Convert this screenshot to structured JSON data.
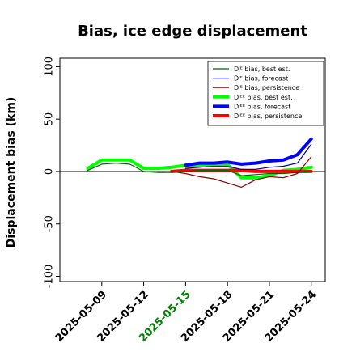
{
  "chart_data": {
    "type": "line",
    "title": "Bias, ice edge displacement",
    "xlabel": "",
    "ylabel": "Displacement bias (km)",
    "ylim": [
      -105,
      108
    ],
    "yticks": [
      -100,
      -50,
      0,
      50,
      100
    ],
    "xlim": [
      "2025-05-06",
      "2025-05-25"
    ],
    "xticks": [
      "2025-05-09",
      "2025-05-12",
      "2025-05-15",
      "2025-05-18",
      "2025-05-21",
      "2025-05-24"
    ],
    "highlighted_xtick": "2025-05-15",
    "highlight_color": "#008000",
    "legend_position": "top-right",
    "grid": false,
    "zero_line": true,
    "series": [
      {
        "name": "Dᴵᴱ bias, best est.",
        "color": "#006400",
        "width": 1.2,
        "x": [
          "2025-05-08",
          "2025-05-09",
          "2025-05-10",
          "2025-05-11",
          "2025-05-12",
          "2025-05-13",
          "2025-05-14",
          "2025-05-15",
          "2025-05-16",
          "2025-05-17",
          "2025-05-18",
          "2025-05-19",
          "2025-05-20",
          "2025-05-21",
          "2025-05-22",
          "2025-05-23",
          "2025-05-24"
        ],
        "y": [
          1,
          7,
          8,
          7,
          0,
          -1,
          -1,
          0,
          1,
          1,
          1,
          -4,
          -3,
          -2,
          -2,
          -1,
          0
        ]
      },
      {
        "name": "Dᴵᴱ bias, forecast",
        "color": "#00008b",
        "width": 1.2,
        "x": [
          "2025-05-15",
          "2025-05-16",
          "2025-05-17",
          "2025-05-18",
          "2025-05-19",
          "2025-05-20",
          "2025-05-21",
          "2025-05-22",
          "2025-05-23",
          "2025-05-24"
        ],
        "y": [
          3,
          4,
          5,
          5,
          2,
          2,
          4,
          5,
          8,
          26
        ]
      },
      {
        "name": "Dᴵᴱ bias, persistence",
        "color": "#8b0000",
        "width": 1.2,
        "x": [
          "2025-05-14",
          "2025-05-15",
          "2025-05-16",
          "2025-05-17",
          "2025-05-18",
          "2025-05-19",
          "2025-05-20",
          "2025-05-21",
          "2025-05-22",
          "2025-05-23",
          "2025-05-24"
        ],
        "y": [
          0,
          -2,
          -5,
          -7,
          -11,
          -15,
          -8,
          -5,
          -6,
          -2,
          14
        ]
      },
      {
        "name": "Dᴵᴱᴱ bias, best est.",
        "color": "#00ff00",
        "width": 4,
        "x": [
          "2025-05-08",
          "2025-05-09",
          "2025-05-10",
          "2025-05-11",
          "2025-05-12",
          "2025-05-13",
          "2025-05-14",
          "2025-05-15",
          "2025-05-16",
          "2025-05-17",
          "2025-05-18",
          "2025-05-19",
          "2025-05-20",
          "2025-05-21",
          "2025-05-22",
          "2025-05-23",
          "2025-05-24"
        ],
        "y": [
          3,
          11,
          11,
          11,
          3,
          3,
          4,
          6,
          6,
          7,
          7,
          -6,
          -6,
          -4,
          1,
          2,
          4
        ]
      },
      {
        "name": "Dᴵᴱᴱ bias, forecast",
        "color": "#0000ff",
        "width": 4,
        "x": [
          "2025-05-15",
          "2025-05-16",
          "2025-05-17",
          "2025-05-18",
          "2025-05-19",
          "2025-05-20",
          "2025-05-21",
          "2025-05-22",
          "2025-05-23",
          "2025-05-24"
        ],
        "y": [
          6,
          8,
          8,
          9,
          7,
          8,
          10,
          11,
          16,
          31
        ]
      },
      {
        "name": "Dᴵᴱᴱ bias, persistence",
        "color": "#ff0000",
        "width": 4,
        "x": [
          "2025-05-14",
          "2025-05-15",
          "2025-05-16",
          "2025-05-17",
          "2025-05-18",
          "2025-05-19",
          "2025-05-20",
          "2025-05-21",
          "2025-05-22",
          "2025-05-23",
          "2025-05-24"
        ],
        "y": [
          0,
          1,
          1,
          1,
          1,
          1,
          0,
          0,
          0,
          0,
          0
        ]
      }
    ]
  }
}
